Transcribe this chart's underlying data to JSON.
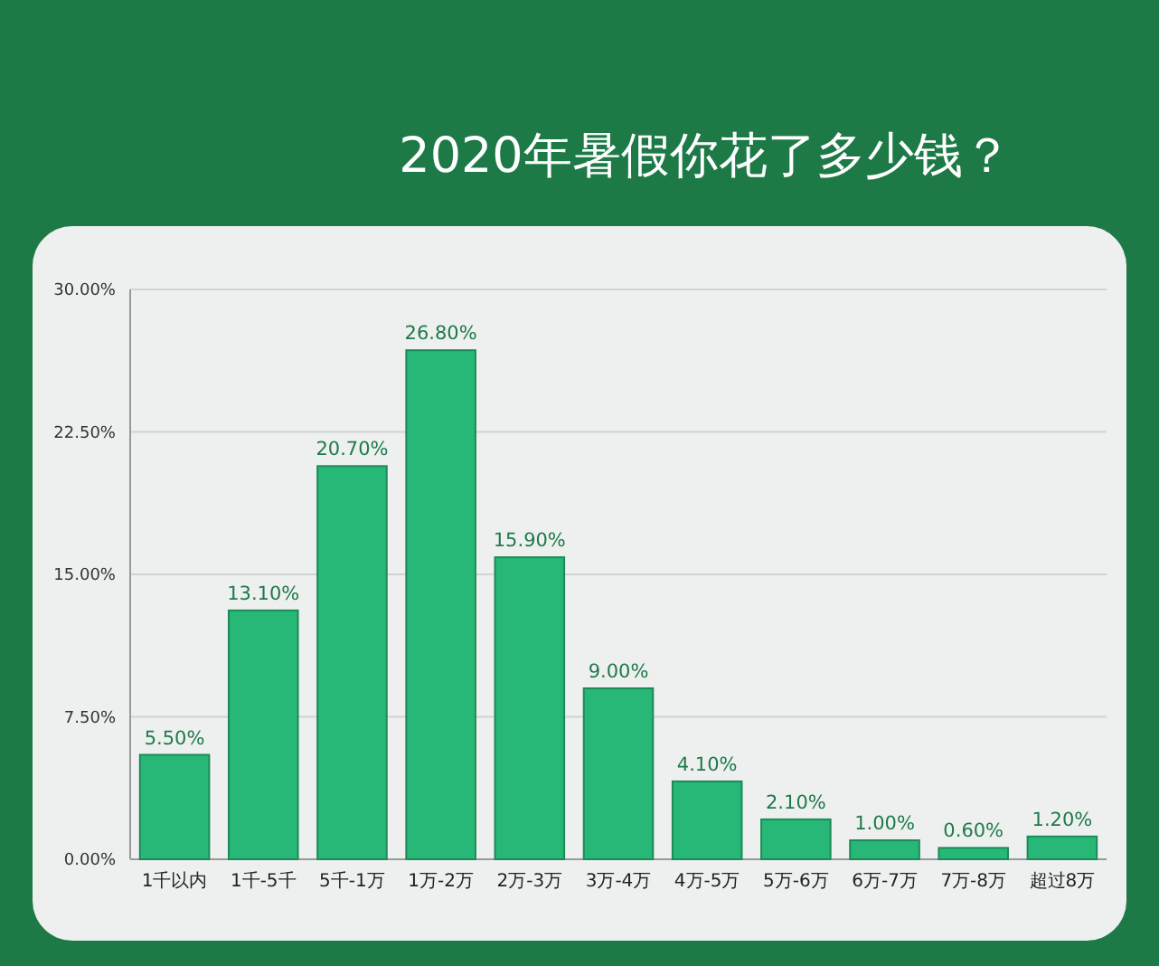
{
  "chart_data": {
    "type": "bar",
    "title": "2020年暑假你花了多少钱？",
    "categories": [
      "1千以内",
      "1千-5千",
      "5千-1万",
      "1万-2万",
      "2万-3万",
      "3万-4万",
      "4万-5万",
      "5万-6万",
      "6万-7万",
      "7万-8万",
      "超过8万"
    ],
    "values": [
      5.5,
      13.1,
      20.7,
      26.8,
      15.9,
      9.0,
      4.1,
      2.1,
      1.0,
      0.6,
      1.2
    ],
    "value_labels": [
      "5.50%",
      "13.10%",
      "20.70%",
      "26.80%",
      "15.90%",
      "9.00%",
      "4.10%",
      "2.10%",
      "1.00%",
      "0.60%",
      "1.20%"
    ],
    "color": "#27b877",
    "ylim": [
      0,
      30
    ],
    "yticks": [
      {
        "value": 0,
        "label": "0.00%"
      },
      {
        "value": 7.5,
        "label": "7.50%"
      },
      {
        "value": 15,
        "label": "15.00%"
      },
      {
        "value": 22.5,
        "label": "22.50%"
      },
      {
        "value": 30,
        "label": "30.00%"
      }
    ],
    "grid": "y"
  }
}
